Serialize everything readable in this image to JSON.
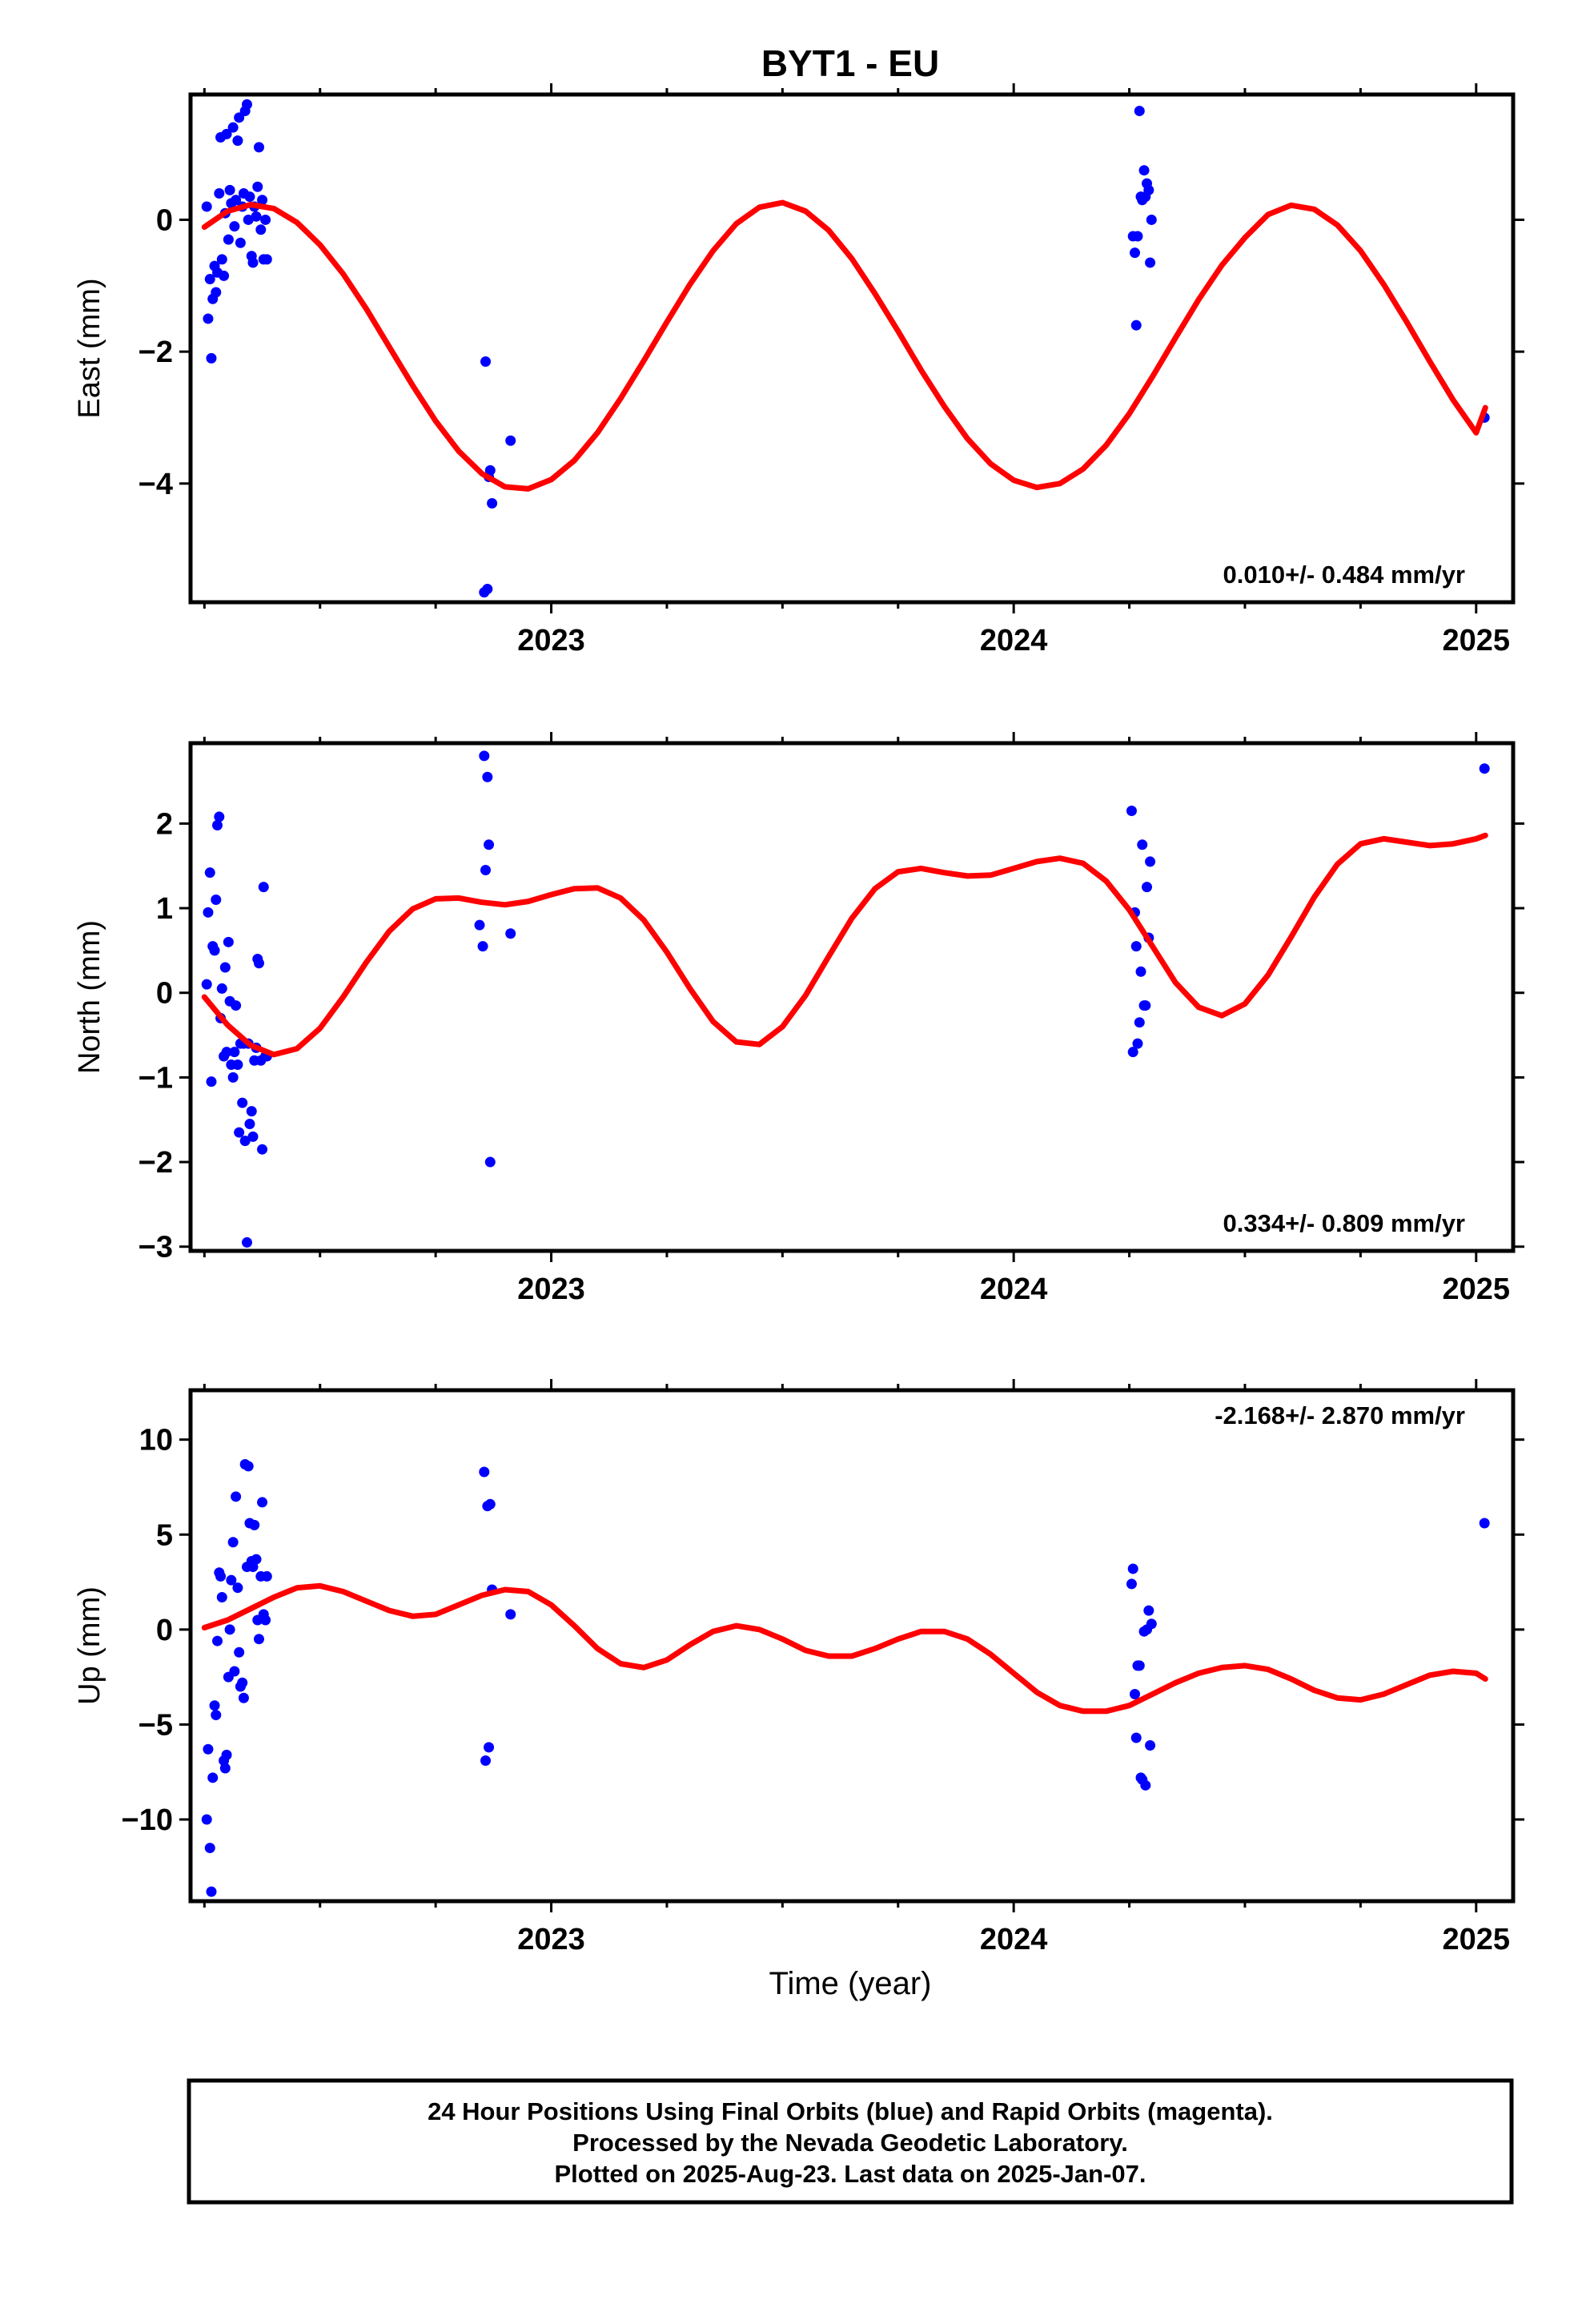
{
  "title": "BYT1 - EU",
  "xlabel": "Time (year)",
  "footer": [
    "24 Hour Positions Using Final Orbits (blue) and Rapid Orbits (magenta).",
    "Processed by the Nevada Geodetic Laboratory.",
    "Plotted on 2025-Aug-23. Last data on 2025-Jan-07."
  ],
  "colors": {
    "data": "#0000ff",
    "model": "#ff0000",
    "axes": "#000000"
  },
  "chart_data": [
    {
      "type": "scatter",
      "ylabel": "East (mm)",
      "rate_text": "0.010+/- 0.484 mm/yr",
      "rate_position": "bottom-right",
      "xlim": [
        2022.22,
        2025.08
      ],
      "ylim": [
        -5.8,
        1.9
      ],
      "xticks": [
        2023,
        2024,
        2025
      ],
      "xtick_labels": [
        "2023",
        "2024",
        "2025"
      ],
      "yticks": [
        0,
        -2,
        -4
      ],
      "ytick_labels": [
        "0",
        "−2",
        "−4"
      ],
      "series": [
        {
          "kind": "points",
          "x": [
            2022.255,
            2022.258,
            2022.262,
            2022.265,
            2022.268,
            2022.272,
            2022.275,
            2022.278,
            2022.282,
            2022.285,
            2022.288,
            2022.292,
            2022.295,
            2022.298,
            2022.302,
            2022.305,
            2022.308,
            2022.312,
            2022.315,
            2022.318,
            2022.322,
            2022.325,
            2022.328,
            2022.332,
            2022.335,
            2022.338,
            2022.342,
            2022.345,
            2022.348,
            2022.352,
            2022.355,
            2022.358,
            2022.362,
            2022.365,
            2022.368,
            2022.372,
            2022.375,
            2022.378,
            2022.382,
            2022.385,
            2022.855,
            2022.858,
            2022.862,
            2022.865,
            2022.868,
            2022.872,
            2022.912,
            2024.258,
            2024.262,
            2024.265,
            2024.268,
            2024.272,
            2024.275,
            2024.278,
            2024.282,
            2024.285,
            2024.288,
            2024.292,
            2024.295,
            2024.298,
            2025.018
          ],
          "y": [
            0.2,
            -1.5,
            -0.9,
            -2.1,
            -1.2,
            -0.7,
            -1.1,
            -0.8,
            0.4,
            1.25,
            -0.6,
            -0.85,
            0.1,
            1.3,
            -0.3,
            0.45,
            0.25,
            1.4,
            -0.1,
            0.3,
            1.2,
            1.55,
            -0.35,
            0.2,
            0.4,
            1.65,
            1.75,
            0.0,
            0.35,
            -0.55,
            -0.65,
            0.2,
            0.05,
            0.5,
            1.1,
            -0.15,
            0.3,
            -0.6,
            0.0,
            -0.6,
            -5.65,
            -2.15,
            -5.6,
            -3.9,
            -3.8,
            -4.3,
            -3.35,
            -0.25,
            -0.5,
            -1.6,
            -0.25,
            1.65,
            0.35,
            0.3,
            0.75,
            0.35,
            0.55,
            0.45,
            -0.65,
            0.0,
            -3.0
          ]
        },
        {
          "kind": "model",
          "x": [
            2022.25,
            2022.3,
            2022.35,
            2022.4,
            2022.45,
            2022.5,
            2022.55,
            2022.6,
            2022.65,
            2022.7,
            2022.75,
            2022.8,
            2022.85,
            2022.9,
            2022.95,
            2023.0,
            2023.05,
            2023.1,
            2023.15,
            2023.2,
            2023.25,
            2023.3,
            2023.35,
            2023.4,
            2023.45,
            2023.5,
            2023.55,
            2023.6,
            2023.65,
            2023.7,
            2023.75,
            2023.8,
            2023.85,
            2023.9,
            2023.95,
            2024.0,
            2024.05,
            2024.1,
            2024.15,
            2024.2,
            2024.25,
            2024.3,
            2024.35,
            2024.4,
            2024.45,
            2024.5,
            2024.55,
            2024.6,
            2024.65,
            2024.7,
            2024.75,
            2024.8,
            2024.85,
            2024.9,
            2024.95,
            2025.0,
            2025.02
          ],
          "y": [
            -0.11,
            0.13,
            0.23,
            0.17,
            -0.04,
            -0.38,
            -0.82,
            -1.35,
            -1.93,
            -2.51,
            -3.05,
            -3.51,
            -3.85,
            -4.05,
            -4.08,
            -3.94,
            -3.65,
            -3.23,
            -2.71,
            -2.14,
            -1.55,
            -0.98,
            -0.47,
            -0.06,
            0.19,
            0.26,
            0.13,
            -0.16,
            -0.59,
            -1.12,
            -1.69,
            -2.28,
            -2.83,
            -3.32,
            -3.7,
            -3.95,
            -4.06,
            -4.0,
            -3.78,
            -3.42,
            -2.94,
            -2.38,
            -1.79,
            -1.21,
            -0.69,
            -0.27,
            0.08,
            0.22,
            0.16,
            -0.08,
            -0.47,
            -0.98,
            -1.55,
            -2.15,
            -2.73,
            -3.23,
            -2.85
          ]
        }
      ]
    },
    {
      "type": "scatter",
      "ylabel": "North (mm)",
      "rate_text": "0.334+/- 0.809 mm/yr",
      "rate_position": "bottom-right",
      "xlim": [
        2022.22,
        2025.08
      ],
      "ylim": [
        -3.05,
        2.95
      ],
      "xticks": [
        2023,
        2024,
        2025
      ],
      "xtick_labels": [
        "2023",
        "2024",
        "2025"
      ],
      "yticks": [
        2,
        1,
        0,
        -1,
        -2,
        -3
      ],
      "ytick_labels": [
        "2",
        "1",
        "0",
        "−1",
        "−2",
        "−3"
      ],
      "series": [
        {
          "kind": "points",
          "x": [
            2022.255,
            2022.258,
            2022.262,
            2022.265,
            2022.268,
            2022.272,
            2022.275,
            2022.278,
            2022.282,
            2022.285,
            2022.288,
            2022.292,
            2022.295,
            2022.298,
            2022.302,
            2022.305,
            2022.308,
            2022.312,
            2022.315,
            2022.318,
            2022.322,
            2022.325,
            2022.328,
            2022.332,
            2022.335,
            2022.338,
            2022.342,
            2022.345,
            2022.348,
            2022.352,
            2022.355,
            2022.358,
            2022.362,
            2022.365,
            2022.368,
            2022.372,
            2022.375,
            2022.378,
            2022.382,
            2022.385,
            2022.845,
            2022.852,
            2022.855,
            2022.858,
            2022.862,
            2022.865,
            2022.868,
            2022.912,
            2024.255,
            2024.258,
            2024.262,
            2024.265,
            2024.268,
            2024.272,
            2024.275,
            2024.278,
            2024.282,
            2024.285,
            2024.288,
            2024.292,
            2024.295,
            2025.018
          ],
          "y": [
            0.1,
            0.95,
            1.42,
            -1.05,
            0.55,
            0.5,
            1.1,
            1.98,
            2.08,
            -0.3,
            0.05,
            -0.75,
            0.3,
            -0.7,
            0.6,
            -0.1,
            -0.85,
            -1.0,
            -0.7,
            -0.15,
            -0.85,
            -1.65,
            -0.6,
            -1.3,
            -0.6,
            -1.75,
            -2.95,
            -0.6,
            -1.55,
            -1.4,
            -1.7,
            -0.8,
            -0.65,
            0.4,
            0.35,
            -0.8,
            -1.85,
            1.25,
            -0.75,
            -0.75,
            0.8,
            0.55,
            2.8,
            1.45,
            2.55,
            1.75,
            -2.0,
            0.7,
            2.15,
            -0.7,
            0.95,
            0.55,
            -0.6,
            -0.35,
            0.25,
            1.75,
            -0.15,
            -0.15,
            1.25,
            0.65,
            1.55,
            2.65
          ]
        },
        {
          "kind": "model",
          "x": [
            2022.25,
            2022.3,
            2022.35,
            2022.4,
            2022.45,
            2022.5,
            2022.55,
            2022.6,
            2022.65,
            2022.7,
            2022.75,
            2022.8,
            2022.85,
            2022.9,
            2022.95,
            2023.0,
            2023.05,
            2023.1,
            2023.15,
            2023.2,
            2023.25,
            2023.3,
            2023.35,
            2023.4,
            2023.45,
            2023.5,
            2023.55,
            2023.6,
            2023.65,
            2023.7,
            2023.75,
            2023.8,
            2023.85,
            2023.9,
            2023.95,
            2024.0,
            2024.05,
            2024.1,
            2024.15,
            2024.2,
            2024.25,
            2024.3,
            2024.35,
            2024.4,
            2024.45,
            2024.5,
            2024.55,
            2024.6,
            2024.65,
            2024.7,
            2024.75,
            2024.8,
            2024.85,
            2024.9,
            2024.95,
            2025.0,
            2025.02
          ],
          "y": [
            -0.05,
            -0.38,
            -0.62,
            -0.73,
            -0.66,
            -0.42,
            -0.05,
            0.36,
            0.73,
            0.99,
            1.11,
            1.12,
            1.07,
            1.04,
            1.08,
            1.16,
            1.23,
            1.24,
            1.12,
            0.86,
            0.48,
            0.05,
            -0.34,
            -0.58,
            -0.61,
            -0.4,
            -0.03,
            0.43,
            0.88,
            1.23,
            1.43,
            1.47,
            1.42,
            1.38,
            1.39,
            1.47,
            1.55,
            1.59,
            1.53,
            1.32,
            0.98,
            0.55,
            0.12,
            -0.17,
            -0.27,
            -0.13,
            0.21,
            0.66,
            1.13,
            1.52,
            1.76,
            1.82,
            1.78,
            1.74,
            1.76,
            1.82,
            1.86
          ]
        }
      ]
    },
    {
      "type": "scatter",
      "ylabel": "Up (mm)",
      "rate_text": "-2.168+/- 2.870 mm/yr",
      "rate_position": "top-right",
      "xlim": [
        2022.22,
        2025.08
      ],
      "ylim": [
        -14.3,
        12.6
      ],
      "xticks": [
        2023,
        2024,
        2025
      ],
      "xtick_labels": [
        "2023",
        "2024",
        "2025"
      ],
      "yticks": [
        10,
        5,
        0,
        -5,
        -10
      ],
      "ytick_labels": [
        "10",
        "5",
        "0",
        "−5",
        "−10"
      ],
      "series": [
        {
          "kind": "points",
          "x": [
            2022.255,
            2022.258,
            2022.262,
            2022.265,
            2022.268,
            2022.272,
            2022.275,
            2022.278,
            2022.282,
            2022.285,
            2022.288,
            2022.292,
            2022.295,
            2022.298,
            2022.302,
            2022.305,
            2022.308,
            2022.312,
            2022.315,
            2022.318,
            2022.322,
            2022.325,
            2022.328,
            2022.332,
            2022.335,
            2022.338,
            2022.342,
            2022.345,
            2022.348,
            2022.352,
            2022.355,
            2022.358,
            2022.362,
            2022.365,
            2022.368,
            2022.372,
            2022.375,
            2022.378,
            2022.382,
            2022.385,
            2022.855,
            2022.858,
            2022.862,
            2022.865,
            2022.868,
            2022.872,
            2022.912,
            2024.255,
            2024.258,
            2024.262,
            2024.265,
            2024.268,
            2024.272,
            2024.275,
            2024.278,
            2024.282,
            2024.285,
            2024.288,
            2024.292,
            2024.295,
            2024.298,
            2025.018
          ],
          "y": [
            -10.0,
            -6.3,
            -11.5,
            -13.8,
            -7.8,
            -4.0,
            -4.5,
            -0.6,
            3.0,
            2.8,
            1.7,
            -6.9,
            -7.3,
            -6.6,
            -2.5,
            0.0,
            2.6,
            4.6,
            -2.2,
            7.0,
            2.2,
            -1.2,
            -3.0,
            -2.8,
            -3.6,
            8.7,
            3.3,
            8.6,
            5.6,
            3.6,
            3.3,
            5.5,
            3.7,
            0.5,
            -0.5,
            2.8,
            6.7,
            0.8,
            0.5,
            2.8,
            8.3,
            -6.9,
            6.5,
            -6.2,
            6.6,
            2.1,
            0.8,
            2.4,
            3.2,
            -3.4,
            -5.7,
            -1.9,
            -1.9,
            -7.8,
            -7.9,
            -0.1,
            -8.2,
            0.0,
            1.0,
            -6.1,
            0.3,
            5.6
          ]
        },
        {
          "kind": "model",
          "x": [
            2022.25,
            2022.3,
            2022.35,
            2022.4,
            2022.45,
            2022.5,
            2022.55,
            2022.6,
            2022.65,
            2022.7,
            2022.75,
            2022.8,
            2022.85,
            2022.9,
            2022.95,
            2023.0,
            2023.05,
            2023.1,
            2023.15,
            2023.2,
            2023.25,
            2023.3,
            2023.35,
            2023.4,
            2023.45,
            2023.5,
            2023.55,
            2023.6,
            2023.65,
            2023.7,
            2023.75,
            2023.8,
            2023.85,
            2023.9,
            2023.95,
            2024.0,
            2024.05,
            2024.1,
            2024.15,
            2024.2,
            2024.25,
            2024.3,
            2024.35,
            2024.4,
            2024.45,
            2024.5,
            2024.55,
            2024.6,
            2024.65,
            2024.7,
            2024.75,
            2024.8,
            2024.85,
            2024.9,
            2024.95,
            2025.0,
            2025.02
          ],
          "y": [
            0.1,
            0.5,
            1.1,
            1.7,
            2.2,
            2.3,
            2.0,
            1.5,
            1.0,
            0.7,
            0.8,
            1.3,
            1.8,
            2.1,
            2.0,
            1.3,
            0.2,
            -1.0,
            -1.8,
            -2.0,
            -1.6,
            -0.8,
            -0.1,
            0.2,
            0.0,
            -0.5,
            -1.1,
            -1.4,
            -1.4,
            -1.0,
            -0.5,
            -0.1,
            -0.1,
            -0.5,
            -1.3,
            -2.3,
            -3.3,
            -4.0,
            -4.3,
            -4.3,
            -4.0,
            -3.4,
            -2.8,
            -2.3,
            -2.0,
            -1.9,
            -2.1,
            -2.6,
            -3.2,
            -3.6,
            -3.7,
            -3.4,
            -2.9,
            -2.4,
            -2.2,
            -2.3,
            -2.6
          ]
        }
      ]
    }
  ]
}
